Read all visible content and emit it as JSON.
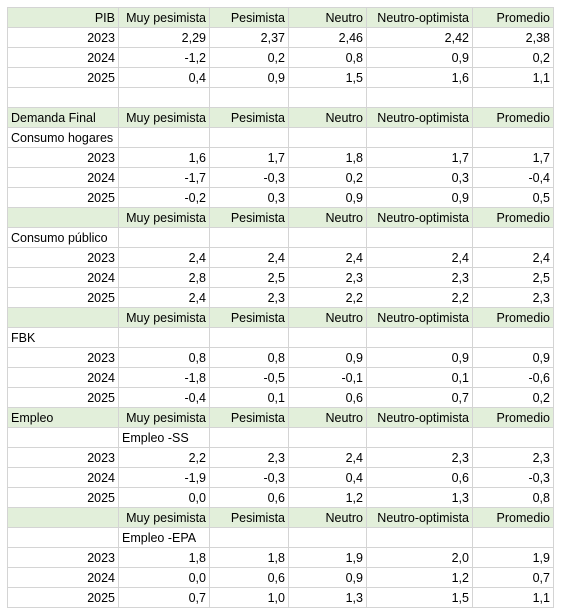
{
  "rows": [
    {
      "type": "header",
      "cells": [
        "PIB",
        "Muy pesimista",
        "Pesimista",
        "Neutro",
        "Neutro-optimista",
        "Promedio"
      ],
      "first_align": "right"
    },
    {
      "type": "data",
      "cells": [
        "2023",
        "2,29",
        "2,37",
        "2,46",
        "2,42",
        "2,38"
      ]
    },
    {
      "type": "data",
      "cells": [
        "2024",
        "-1,2",
        "0,2",
        "0,8",
        "0,9",
        "0,2"
      ]
    },
    {
      "type": "data",
      "cells": [
        "2025",
        "0,4",
        "0,9",
        "1,5",
        "1,6",
        "1,1"
      ]
    },
    {
      "type": "blank",
      "cells": [
        "",
        "",
        "",
        "",
        "",
        ""
      ]
    },
    {
      "type": "header",
      "cells": [
        "Demanda Final",
        "Muy pesimista",
        "Pesimista",
        "Neutro",
        "Neutro-optimista",
        "Promedio"
      ],
      "first_align": "left"
    },
    {
      "type": "label",
      "cells": [
        "Consumo hogares",
        "",
        "",
        "",
        "",
        ""
      ]
    },
    {
      "type": "data",
      "cells": [
        "2023",
        "1,6",
        "1,7",
        "1,8",
        "1,7",
        "1,7"
      ]
    },
    {
      "type": "data",
      "cells": [
        "2024",
        "-1,7",
        "-0,3",
        "0,2",
        "0,3",
        "-0,4"
      ]
    },
    {
      "type": "data",
      "cells": [
        "2025",
        "-0,2",
        "0,3",
        "0,9",
        "0,9",
        "0,5"
      ]
    },
    {
      "type": "header",
      "cells": [
        "",
        "Muy pesimista",
        "Pesimista",
        "Neutro",
        "Neutro-optimista",
        "Promedio"
      ],
      "first_align": "left"
    },
    {
      "type": "label",
      "cells": [
        "Consumo público",
        "",
        "",
        "",
        "",
        ""
      ]
    },
    {
      "type": "data",
      "cells": [
        "2023",
        "2,4",
        "2,4",
        "2,4",
        "2,4",
        "2,4"
      ]
    },
    {
      "type": "data",
      "cells": [
        "2024",
        "2,8",
        "2,5",
        "2,3",
        "2,3",
        "2,5"
      ]
    },
    {
      "type": "data",
      "cells": [
        "2025",
        "2,4",
        "2,3",
        "2,2",
        "2,2",
        "2,3"
      ]
    },
    {
      "type": "header",
      "cells": [
        "",
        "Muy pesimista",
        "Pesimista",
        "Neutro",
        "Neutro-optimista",
        "Promedio"
      ],
      "first_align": "left"
    },
    {
      "type": "label",
      "cells": [
        "FBK",
        "",
        "",
        "",
        "",
        ""
      ]
    },
    {
      "type": "data",
      "cells": [
        "2023",
        "0,8",
        "0,8",
        "0,9",
        "0,9",
        "0,9"
      ]
    },
    {
      "type": "data",
      "cells": [
        "2024",
        "-1,8",
        "-0,5",
        "-0,1",
        "0,1",
        "-0,6"
      ]
    },
    {
      "type": "data",
      "cells": [
        "2025",
        "-0,4",
        "0,1",
        "0,6",
        "0,7",
        "0,2"
      ]
    },
    {
      "type": "header",
      "cells": [
        "Empleo",
        "Muy pesimista",
        "Pesimista",
        "Neutro",
        "Neutro-optimista",
        "Promedio"
      ],
      "first_align": "left"
    },
    {
      "type": "sublabel",
      "cells": [
        "",
        "Empleo -SS",
        "",
        "",
        "",
        ""
      ]
    },
    {
      "type": "data",
      "cells": [
        "2023",
        "2,2",
        "2,3",
        "2,4",
        "2,3",
        "2,3"
      ]
    },
    {
      "type": "data",
      "cells": [
        "2024",
        "-1,9",
        "-0,3",
        "0,4",
        "0,6",
        "-0,3"
      ]
    },
    {
      "type": "data",
      "cells": [
        "2025",
        "0,0",
        "0,6",
        "1,2",
        "1,3",
        "0,8"
      ]
    },
    {
      "type": "header",
      "cells": [
        "",
        "Muy pesimista",
        "Pesimista",
        "Neutro",
        "Neutro-optimista",
        "Promedio"
      ],
      "first_align": "left"
    },
    {
      "type": "sublabel",
      "cells": [
        "",
        "Empleo -EPA",
        "",
        "",
        "",
        ""
      ]
    },
    {
      "type": "data",
      "cells": [
        "2023",
        "1,8",
        "1,8",
        "1,9",
        "2,0",
        "1,9"
      ]
    },
    {
      "type": "data",
      "cells": [
        "2024",
        "0,0",
        "0,6",
        "0,9",
        "1,2",
        "0,7"
      ]
    },
    {
      "type": "data",
      "cells": [
        "2025",
        "0,7",
        "1,0",
        "1,3",
        "1,5",
        "1,1"
      ]
    }
  ],
  "colors": {
    "header_fill": "#e2efda",
    "grid": "#d4d4d4"
  }
}
